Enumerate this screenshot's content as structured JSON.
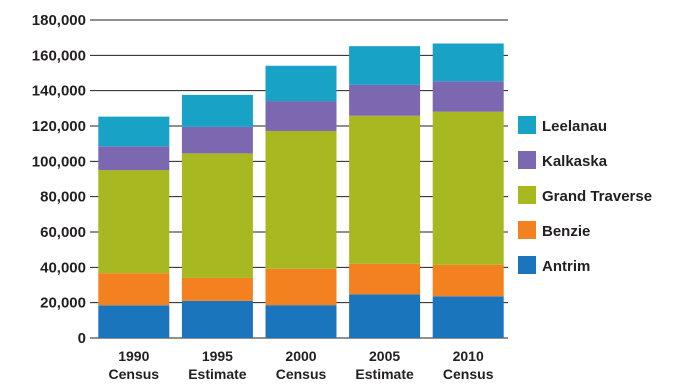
{
  "chart_data": {
    "type": "bar",
    "stacked": true,
    "categories": [
      [
        "1990",
        "Census"
      ],
      [
        "1995",
        "Estimate"
      ],
      [
        "2000",
        "Census"
      ],
      [
        "2005",
        "Estimate"
      ],
      [
        "2010",
        "Census"
      ]
    ],
    "series": [
      {
        "name": "Antrim",
        "color": "#1b75bc",
        "values": [
          18500,
          21000,
          18600,
          24700,
          23600
        ]
      },
      {
        "name": "Benzie",
        "color": "#f38120",
        "values": [
          18200,
          13000,
          20600,
          17300,
          17900
        ]
      },
      {
        "name": "Grand Traverse",
        "color": "#a8b820",
        "values": [
          58300,
          70500,
          78000,
          83800,
          86600
        ]
      },
      {
        "name": "Kalkaska",
        "color": "#7b68b0",
        "values": [
          13500,
          15000,
          16900,
          17500,
          17200
        ]
      },
      {
        "name": "Leelanau",
        "color": "#17a2c6",
        "values": [
          16800,
          18100,
          20000,
          21900,
          21400
        ]
      }
    ],
    "y_ticks": [
      "0",
      "20,000",
      "40,000",
      "60,000",
      "80,000",
      "100,000",
      "120,000",
      "140,000",
      "160,000",
      "180,000"
    ],
    "ylim": [
      0,
      180000
    ],
    "grid": true,
    "legend_position": "right"
  }
}
